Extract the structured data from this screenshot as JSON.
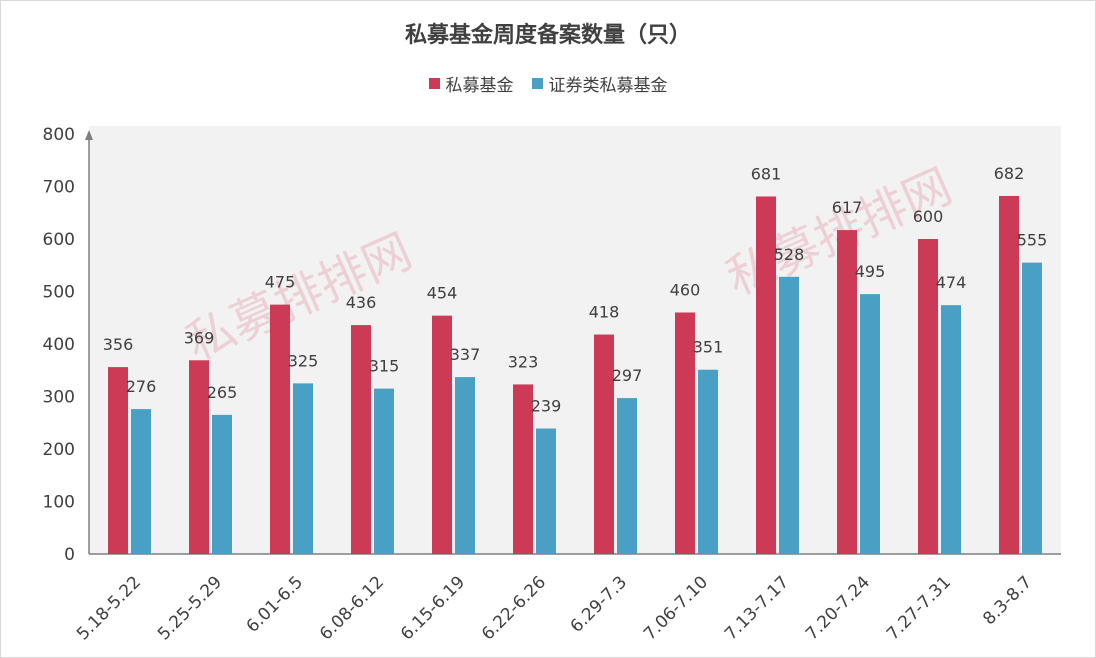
{
  "title": "私募基金周度备案数量（只）",
  "watermark": "私募排排网",
  "colors": {
    "series_a": "#cc3a55",
    "series_b": "#4aa0c4",
    "plot_bg": "#f2f2f2"
  },
  "legend": [
    {
      "name": "私募基金",
      "color": "#cc3a55"
    },
    {
      "name": "证券类私募基金",
      "color": "#4aa0c4"
    }
  ],
  "chart_data": {
    "type": "bar",
    "title": "私募基金周度备案数量（只）",
    "categories": [
      "5.18-5.22",
      "5.25-5.29",
      "6.01-6.5",
      "6.08-6.12",
      "6.15-6.19",
      "6.22-6.26",
      "6.29-7.3",
      "7.06-7.10",
      "7.13-7.17",
      "7.20-7.24",
      "7.27-7.31",
      "8.3-8.7"
    ],
    "series": [
      {
        "name": "私募基金",
        "values": [
          356,
          369,
          475,
          436,
          454,
          323,
          418,
          460,
          681,
          617,
          600,
          682
        ]
      },
      {
        "name": "证券类私募基金",
        "values": [
          276,
          265,
          325,
          315,
          337,
          239,
          297,
          351,
          528,
          495,
          474,
          555
        ]
      }
    ],
    "yticks": [
      "0",
      "100",
      "200",
      "300",
      "400",
      "500",
      "600",
      "700",
      "800"
    ],
    "ylim": [
      0,
      800
    ],
    "xlabel": "",
    "ylabel": "",
    "legend_position": "top",
    "grid": false
  }
}
